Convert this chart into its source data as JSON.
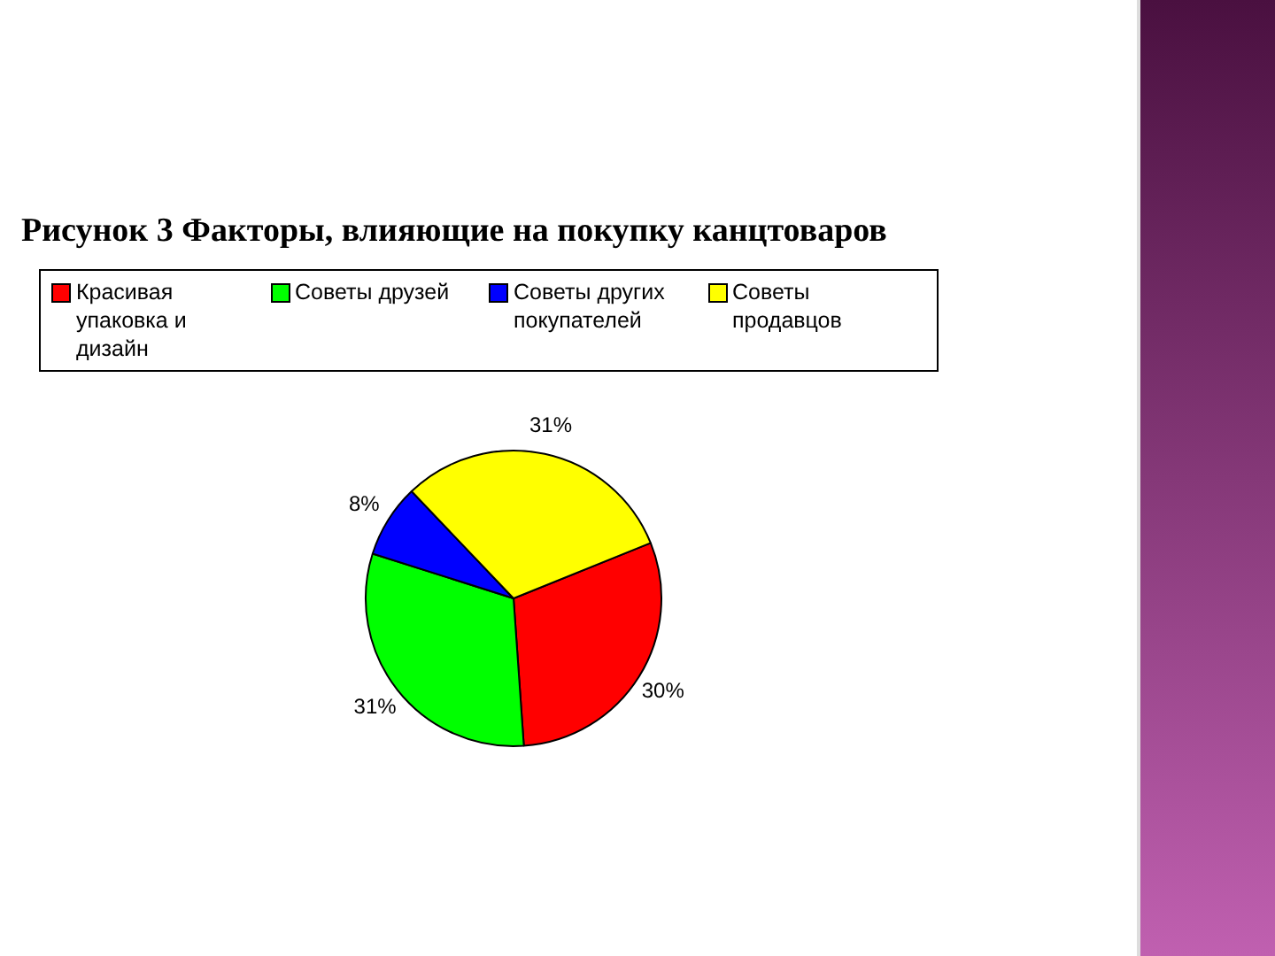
{
  "chart_data": {
    "type": "pie",
    "title": "Рисунок 3 Факторы, влияющие на покупку канцтоваров",
    "categories": [
      "Красивая упаковка и дизайн",
      "Советы друзей",
      "Советы других покупателей",
      "Советы продавцов"
    ],
    "values": [
      30,
      31,
      8,
      31
    ],
    "colors": [
      "#ff0000",
      "#00ff00",
      "#0000ff",
      "#ffff00"
    ],
    "value_labels": [
      "30%",
      "31%",
      "8%",
      "31%"
    ],
    "legend": "top"
  }
}
